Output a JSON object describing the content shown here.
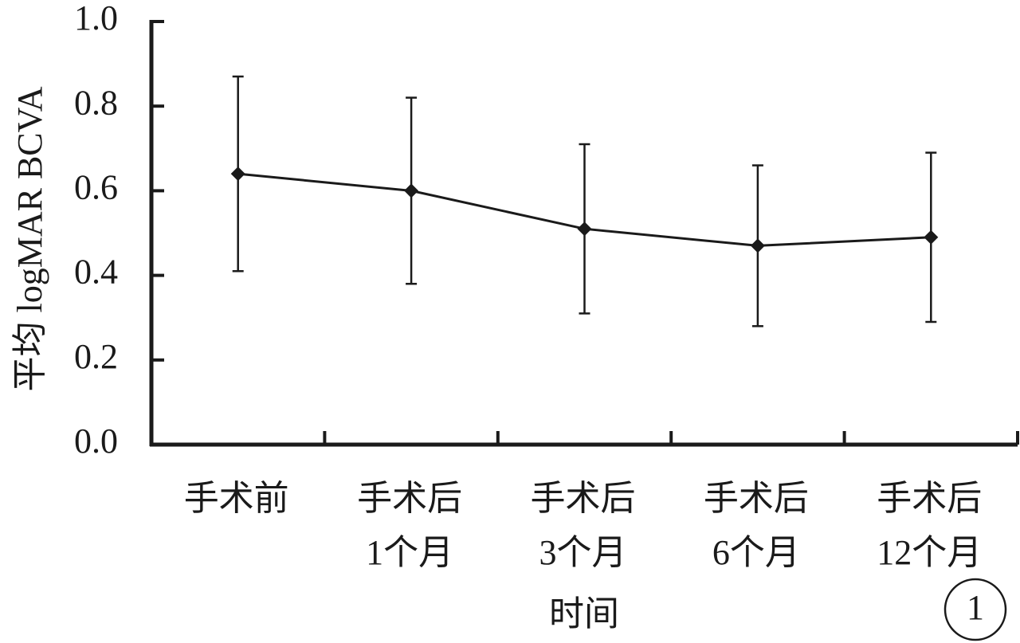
{
  "chart_data": {
    "type": "line",
    "y_label": "平均 logMAR  BCVA",
    "x_label": "时间",
    "annotation": "1",
    "categories": [
      "手术前",
      "手术后\n1个月",
      "手术后\n3个月",
      "手术后\n6个月",
      "手术后\n12个月"
    ],
    "series": [
      {
        "name": "logMAR BCVA",
        "color": "#1a1a1a",
        "values": [
          0.64,
          0.6,
          0.51,
          0.47,
          0.49
        ],
        "errors": [
          0.23,
          0.22,
          0.2,
          0.19,
          0.2
        ]
      }
    ],
    "ylim": [
      0,
      1.0
    ],
    "yticks": [
      {
        "value": 0,
        "label": "0.0"
      },
      0.2,
      0.4,
      0.6,
      0.8,
      {
        "value": 1.0,
        "label": "1.0"
      }
    ]
  }
}
